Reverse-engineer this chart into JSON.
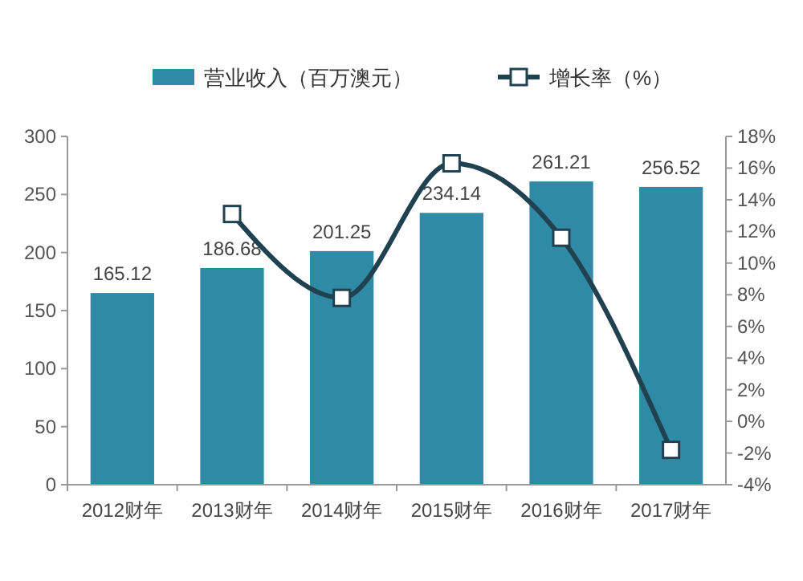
{
  "chart_data": {
    "type": "bar",
    "categories": [
      "2012财年",
      "2013财年",
      "2014财年",
      "2015财年",
      "2016财年",
      "2017财年"
    ],
    "series": [
      {
        "name": "营业收入（百万澳元）",
        "color": "#2f8aa5",
        "values": [
          165.12,
          186.68,
          201.25,
          234.14,
          261.21,
          256.52
        ],
        "value_labels": [
          "165.12",
          "186.68",
          "201.25",
          "234.14",
          "261.21",
          "256.52"
        ]
      },
      {
        "name": "增长率（%）",
        "type": "line",
        "axis": "y2",
        "color": "#1f4150",
        "values": [
          null,
          13.1,
          7.8,
          16.3,
          11.6,
          -1.8
        ]
      }
    ],
    "ylim": [
      0,
      300
    ],
    "yticks": [
      0,
      50,
      100,
      150,
      200,
      250,
      300
    ],
    "y2lim": [
      -4,
      18
    ],
    "y2ticks": [
      {
        "value": -4,
        "label": "-4%"
      },
      {
        "value": -2,
        "label": "-2%"
      },
      {
        "value": 0,
        "label": "0%"
      },
      {
        "value": 2,
        "label": "2%"
      },
      {
        "value": 4,
        "label": "4%"
      },
      {
        "value": 6,
        "label": "6%"
      },
      {
        "value": 8,
        "label": "8%"
      },
      {
        "value": 10,
        "label": "10%"
      },
      {
        "value": 12,
        "label": "12%"
      },
      {
        "value": 14,
        "label": "14%"
      },
      {
        "value": 16,
        "label": "16%"
      },
      {
        "value": 18,
        "label": "18%"
      }
    ],
    "marker": "square",
    "legend": "top",
    "grid": false
  }
}
